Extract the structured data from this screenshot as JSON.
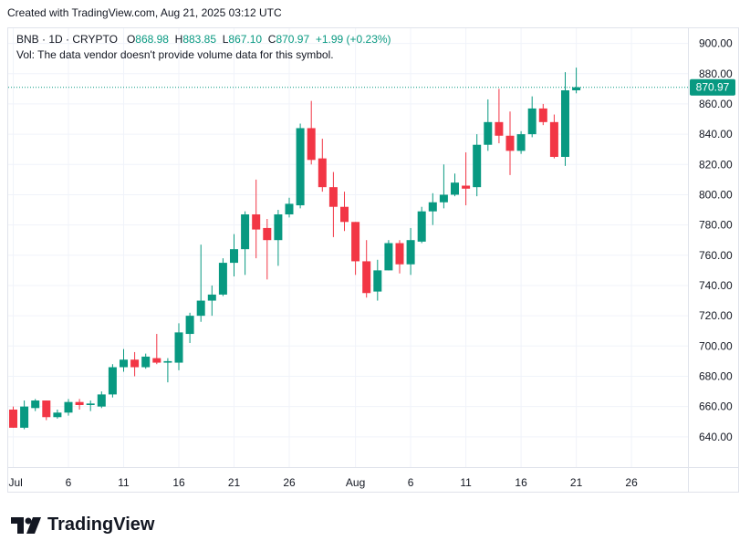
{
  "header": {
    "text": "Created with TradingView.com, Aug 21, 2025 03:12 UTC"
  },
  "legend": {
    "symbol": "BNB · 1D · CRYPTO",
    "o_label": "O",
    "o_value": "868.98",
    "h_label": "H",
    "h_value": "883.85",
    "l_label": "L",
    "l_value": "867.10",
    "c_label": "C",
    "c_value": "870.97",
    "change": "+1.99 (+0.23%)",
    "vol_note": "Vol: The data vendor doesn't provide volume data for this symbol."
  },
  "price_badge": "870.97",
  "brand": {
    "name": "TradingView"
  },
  "colors": {
    "up": "#089981",
    "down": "#f23645",
    "grid": "#f0f3fa",
    "text": "#131722"
  },
  "chart_data": {
    "type": "candlestick",
    "ylim": [
      620,
      910
    ],
    "y_ticks": [
      640,
      660,
      680,
      700,
      720,
      740,
      760,
      780,
      800,
      820,
      840,
      860,
      880,
      900
    ],
    "y_tick_labels": [
      "640.00",
      "660.00",
      "680.00",
      "700.00",
      "720.00",
      "740.00",
      "760.00",
      "780.00",
      "800.00",
      "820.00",
      "840.00",
      "860.00",
      "880.00",
      "900.00"
    ],
    "x_ticks": [
      {
        "label": "Jul",
        "index": 0
      },
      {
        "label": "6",
        "index": 5
      },
      {
        "label": "11",
        "index": 10
      },
      {
        "label": "16",
        "index": 15
      },
      {
        "label": "21",
        "index": 20
      },
      {
        "label": "26",
        "index": 25
      },
      {
        "label": "Aug",
        "index": 31
      },
      {
        "label": "6",
        "index": 36
      },
      {
        "label": "11",
        "index": 41
      },
      {
        "label": "16",
        "index": 46
      },
      {
        "label": "21",
        "index": 51
      },
      {
        "label": "26",
        "index": 56
      }
    ],
    "last_price": 870.97,
    "candles": [
      {
        "o": 658,
        "h": 660,
        "l": 646,
        "c": 646
      },
      {
        "o": 646,
        "h": 664,
        "l": 645,
        "c": 660
      },
      {
        "o": 659,
        "h": 665,
        "l": 657,
        "c": 664
      },
      {
        "o": 664,
        "h": 664,
        "l": 651,
        "c": 653
      },
      {
        "o": 653,
        "h": 658,
        "l": 652,
        "c": 656
      },
      {
        "o": 656,
        "h": 665,
        "l": 654,
        "c": 663
      },
      {
        "o": 663,
        "h": 665,
        "l": 658,
        "c": 661
      },
      {
        "o": 661,
        "h": 664,
        "l": 657,
        "c": 662
      },
      {
        "o": 660,
        "h": 670,
        "l": 659,
        "c": 668
      },
      {
        "o": 668,
        "h": 688,
        "l": 666,
        "c": 686
      },
      {
        "o": 686,
        "h": 698,
        "l": 683,
        "c": 691
      },
      {
        "o": 691,
        "h": 696,
        "l": 680,
        "c": 686
      },
      {
        "o": 686,
        "h": 695,
        "l": 685,
        "c": 693
      },
      {
        "o": 692,
        "h": 708,
        "l": 688,
        "c": 689
      },
      {
        "o": 689,
        "h": 692,
        "l": 676,
        "c": 690
      },
      {
        "o": 689,
        "h": 715,
        "l": 684,
        "c": 709
      },
      {
        "o": 708,
        "h": 722,
        "l": 702,
        "c": 720
      },
      {
        "o": 720,
        "h": 767,
        "l": 716,
        "c": 730
      },
      {
        "o": 730,
        "h": 740,
        "l": 720,
        "c": 734
      },
      {
        "o": 734,
        "h": 758,
        "l": 733,
        "c": 755
      },
      {
        "o": 755,
        "h": 774,
        "l": 746,
        "c": 764
      },
      {
        "o": 764,
        "h": 789,
        "l": 747,
        "c": 787
      },
      {
        "o": 787,
        "h": 810,
        "l": 758,
        "c": 777
      },
      {
        "o": 778,
        "h": 784,
        "l": 744,
        "c": 770
      },
      {
        "o": 770,
        "h": 790,
        "l": 753,
        "c": 787
      },
      {
        "o": 787,
        "h": 798,
        "l": 785,
        "c": 794
      },
      {
        "o": 793,
        "h": 847,
        "l": 791,
        "c": 844
      },
      {
        "o": 844,
        "h": 862,
        "l": 820,
        "c": 823
      },
      {
        "o": 824,
        "h": 837,
        "l": 802,
        "c": 805
      },
      {
        "o": 805,
        "h": 815,
        "l": 772,
        "c": 792
      },
      {
        "o": 792,
        "h": 802,
        "l": 776,
        "c": 782
      },
      {
        "o": 782,
        "h": 782,
        "l": 747,
        "c": 756
      },
      {
        "o": 756,
        "h": 770,
        "l": 732,
        "c": 735
      },
      {
        "o": 736,
        "h": 757,
        "l": 730,
        "c": 750
      },
      {
        "o": 750,
        "h": 770,
        "l": 750,
        "c": 768
      },
      {
        "o": 768,
        "h": 770,
        "l": 748,
        "c": 754
      },
      {
        "o": 754,
        "h": 778,
        "l": 747,
        "c": 770
      },
      {
        "o": 769,
        "h": 792,
        "l": 768,
        "c": 789
      },
      {
        "o": 789,
        "h": 801,
        "l": 780,
        "c": 795
      },
      {
        "o": 795,
        "h": 820,
        "l": 791,
        "c": 800
      },
      {
        "o": 800,
        "h": 814,
        "l": 799,
        "c": 808
      },
      {
        "o": 806,
        "h": 828,
        "l": 793,
        "c": 804
      },
      {
        "o": 805,
        "h": 840,
        "l": 799,
        "c": 833
      },
      {
        "o": 833,
        "h": 863,
        "l": 829,
        "c": 848
      },
      {
        "o": 848,
        "h": 870,
        "l": 834,
        "c": 839
      },
      {
        "o": 839,
        "h": 855,
        "l": 813,
        "c": 829
      },
      {
        "o": 829,
        "h": 842,
        "l": 827,
        "c": 840
      },
      {
        "o": 840,
        "h": 865,
        "l": 838,
        "c": 857
      },
      {
        "o": 857,
        "h": 860,
        "l": 846,
        "c": 848
      },
      {
        "o": 848,
        "h": 853,
        "l": 824,
        "c": 825
      },
      {
        "o": 825,
        "h": 881,
        "l": 819,
        "c": 869
      },
      {
        "o": 869,
        "h": 884,
        "l": 867,
        "c": 871
      }
    ]
  }
}
